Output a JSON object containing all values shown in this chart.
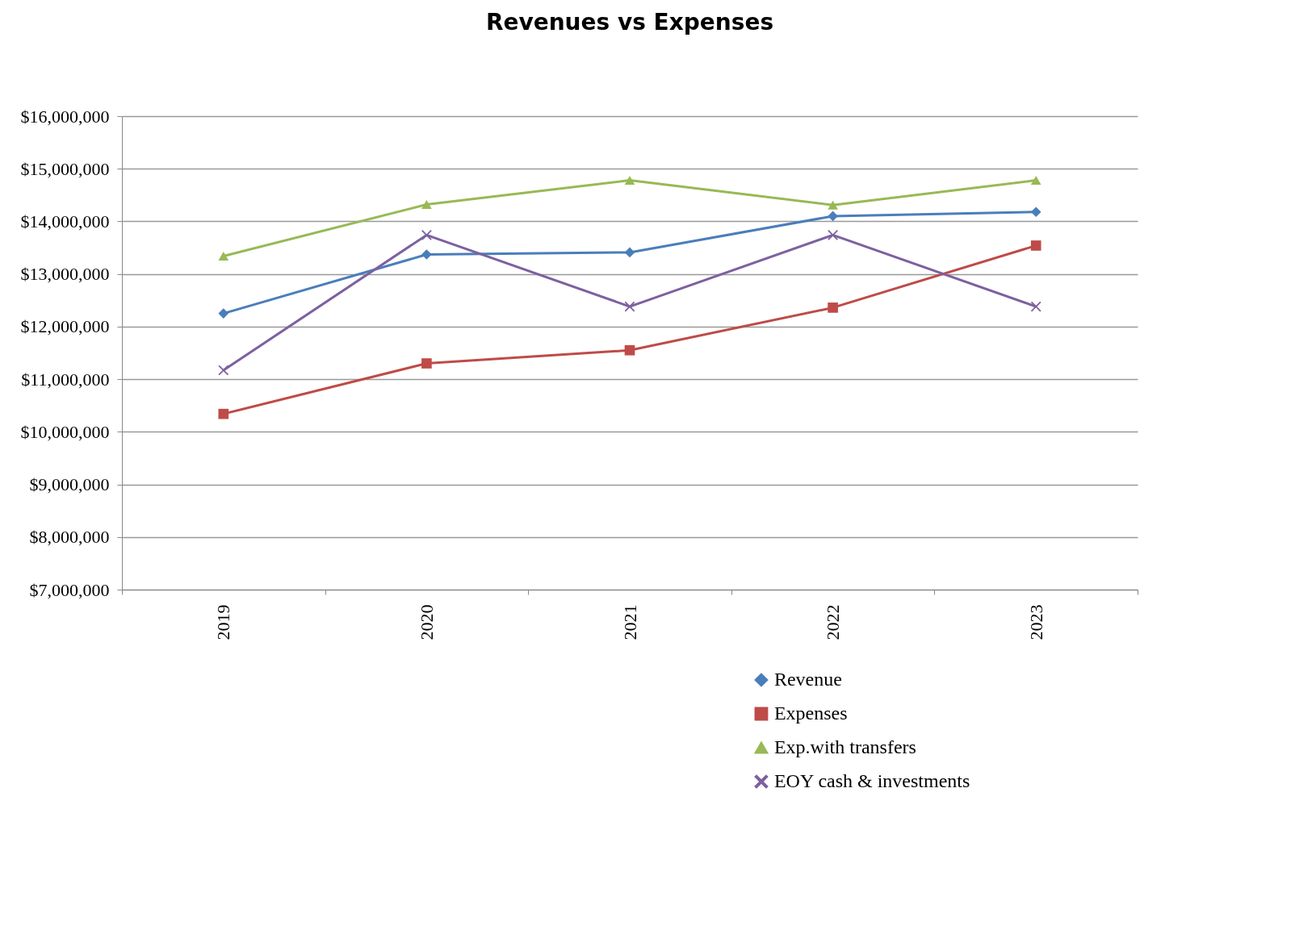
{
  "chart_data": {
    "type": "line",
    "title": "Revenues vs Expenses",
    "categories": [
      "2019",
      "2020",
      "2021",
      "2022",
      "2023"
    ],
    "series": [
      {
        "name": "Revenue",
        "color": "#4a7ebb",
        "marker": "diamond",
        "values": [
          12250000,
          13370000,
          13410000,
          14100000,
          14180000
        ]
      },
      {
        "name": "Expenses",
        "color": "#be4b48",
        "marker": "square",
        "values": [
          10340000,
          11300000,
          11550000,
          12360000,
          13540000
        ]
      },
      {
        "name": "Exp.with transfers",
        "color": "#98b954",
        "marker": "triangle",
        "values": [
          13340000,
          14320000,
          14780000,
          14310000,
          14780000
        ]
      },
      {
        "name": "EOY cash & investments",
        "color": "#7d60a0",
        "marker": "cross",
        "values": [
          11170000,
          13740000,
          12380000,
          13740000,
          12380000
        ]
      }
    ],
    "ylim": [
      7000000,
      16000000
    ],
    "yticks": [
      {
        "value": 7000000,
        "label": "$7,000,000"
      },
      {
        "value": 8000000,
        "label": "$8,000,000"
      },
      {
        "value": 9000000,
        "label": "$9,000,000"
      },
      {
        "value": 10000000,
        "label": "$10,000,000"
      },
      {
        "value": 11000000,
        "label": "$11,000,000"
      },
      {
        "value": 12000000,
        "label": "$12,000,000"
      },
      {
        "value": 13000000,
        "label": "$13,000,000"
      },
      {
        "value": 14000000,
        "label": "$14,000,000"
      },
      {
        "value": 15000000,
        "label": "$15,000,000"
      },
      {
        "value": 16000000,
        "label": "$16,000,000"
      }
    ],
    "grid": "y",
    "legend": "bottom right"
  }
}
